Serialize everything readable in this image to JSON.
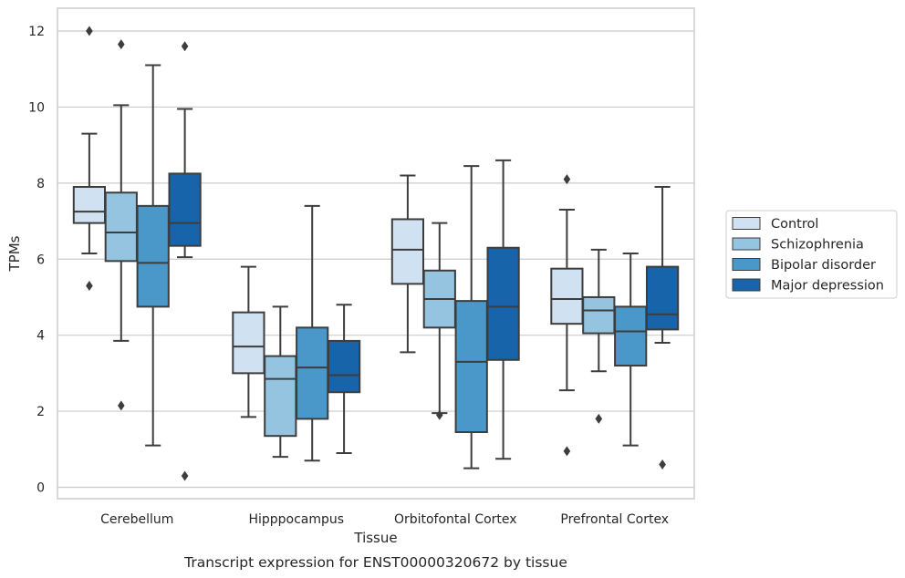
{
  "chart_data": {
    "type": "boxplot",
    "caption": "Transcript expression for ENST00000320672 by tissue",
    "xlabel": "Tissue",
    "ylabel": "TPMs",
    "ylim": [
      -0.3,
      12.6
    ],
    "yticks": [
      0,
      2,
      4,
      6,
      8,
      10,
      12
    ],
    "ytick_labels": [
      "0",
      "2",
      "4",
      "6",
      "8",
      "10",
      "12"
    ],
    "grid": "horizontal",
    "legend_position": "right",
    "categories": [
      "Cerebellum",
      "Hipppocampus",
      "Orbitofontal Cortex",
      "Prefrontal Cortex"
    ],
    "series": [
      {
        "name": "Control",
        "color": "#d0e1f2",
        "boxes": [
          {
            "whisker_low": 6.15,
            "q1": 6.95,
            "median": 7.25,
            "q3": 7.9,
            "whisker_high": 9.3,
            "outliers": [
              12.0,
              5.3
            ]
          },
          {
            "whisker_low": 1.85,
            "q1": 3.0,
            "median": 3.7,
            "q3": 4.6,
            "whisker_high": 5.8,
            "outliers": []
          },
          {
            "whisker_low": 3.55,
            "q1": 5.35,
            "median": 6.25,
            "q3": 7.05,
            "whisker_high": 8.2,
            "outliers": []
          },
          {
            "whisker_low": 2.55,
            "q1": 4.3,
            "median": 4.95,
            "q3": 5.75,
            "whisker_high": 7.3,
            "outliers": [
              8.1,
              0.95
            ]
          }
        ]
      },
      {
        "name": "Schizophrenia",
        "color": "#94c4df",
        "boxes": [
          {
            "whisker_low": 3.85,
            "q1": 5.95,
            "median": 6.7,
            "q3": 7.75,
            "whisker_high": 10.05,
            "outliers": [
              11.65,
              2.15
            ]
          },
          {
            "whisker_low": 0.8,
            "q1": 1.35,
            "median": 2.85,
            "q3": 3.45,
            "whisker_high": 4.75,
            "outliers": []
          },
          {
            "whisker_low": 1.95,
            "q1": 4.2,
            "median": 4.95,
            "q3": 5.7,
            "whisker_high": 6.95,
            "outliers": [
              1.9
            ]
          },
          {
            "whisker_low": 3.05,
            "q1": 4.05,
            "median": 4.65,
            "q3": 5.0,
            "whisker_high": 6.25,
            "outliers": [
              1.8
            ]
          }
        ]
      },
      {
        "name": "Bipolar disorder",
        "color": "#4a98c9",
        "boxes": [
          {
            "whisker_low": 1.1,
            "q1": 4.75,
            "median": 5.9,
            "q3": 7.4,
            "whisker_high": 11.1,
            "outliers": []
          },
          {
            "whisker_low": 0.7,
            "q1": 1.8,
            "median": 3.15,
            "q3": 4.2,
            "whisker_high": 7.4,
            "outliers": []
          },
          {
            "whisker_low": 0.5,
            "q1": 1.45,
            "median": 3.3,
            "q3": 4.9,
            "whisker_high": 8.45,
            "outliers": []
          },
          {
            "whisker_low": 1.1,
            "q1": 3.2,
            "median": 4.1,
            "q3": 4.75,
            "whisker_high": 6.15,
            "outliers": []
          }
        ]
      },
      {
        "name": "Major depression",
        "color": "#1764ab",
        "boxes": [
          {
            "whisker_low": 6.05,
            "q1": 6.35,
            "median": 6.95,
            "q3": 8.25,
            "whisker_high": 9.95,
            "outliers": [
              11.6,
              0.3
            ]
          },
          {
            "whisker_low": 0.9,
            "q1": 2.5,
            "median": 2.95,
            "q3": 3.85,
            "whisker_high": 4.8,
            "outliers": []
          },
          {
            "whisker_low": 0.75,
            "q1": 3.35,
            "median": 4.75,
            "q3": 6.3,
            "whisker_high": 8.6,
            "outliers": []
          },
          {
            "whisker_low": 3.8,
            "q1": 4.15,
            "median": 4.55,
            "q3": 5.8,
            "whisker_high": 7.9,
            "outliers": [
              0.6
            ]
          }
        ]
      }
    ]
  }
}
